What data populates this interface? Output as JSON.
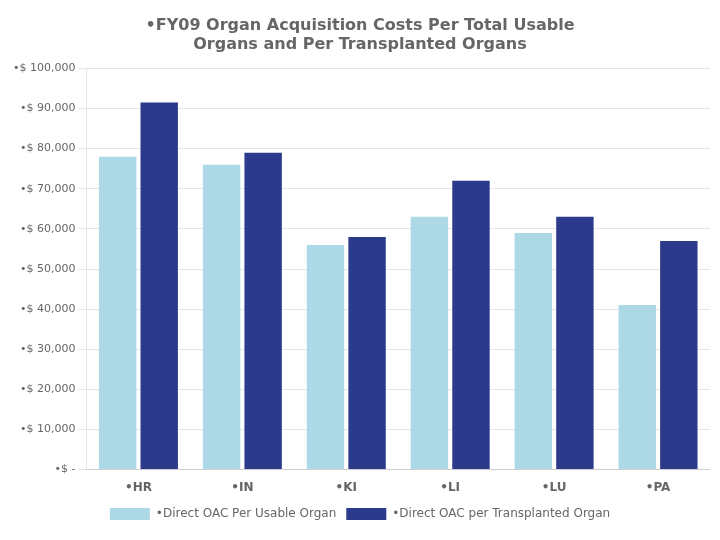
{
  "chart_data": {
    "type": "bar",
    "title": "•FY09 Organ Acquisition Costs Per Total Usable\nOrgans and Per Transplanted Organs",
    "categories": [
      "•HR",
      "•IN",
      "•KI",
      "•LI",
      "•LU",
      "•PA"
    ],
    "series": [
      {
        "name": "•Direct OAC Per Usable Organ",
        "color": "#add8e6",
        "values": [
          78000,
          76000,
          56000,
          63000,
          59000,
          41000
        ]
      },
      {
        "name": "•Direct OAC per Transplanted Organ",
        "color": "#2b3a8a",
        "values": [
          91500,
          79000,
          58000,
          72000,
          63000,
          57000
        ]
      }
    ],
    "ylim": [
      0,
      100000
    ],
    "yticks": [
      {
        "value": 0,
        "label": "•$ -"
      },
      {
        "value": 10000,
        "label": "•$ 10,000"
      },
      {
        "value": 20000,
        "label": "•$ 20,000"
      },
      {
        "value": 30000,
        "label": "•$ 30,000"
      },
      {
        "value": 40000,
        "label": "•$ 40,000"
      },
      {
        "value": 50000,
        "label": "•$ 50,000"
      },
      {
        "value": 60000,
        "label": "•$ 60,000"
      },
      {
        "value": 70000,
        "label": "•$ 70,000"
      },
      {
        "value": 80000,
        "label": "•$ 80,000"
      },
      {
        "value": 90000,
        "label": "•$ 90,000"
      },
      {
        "value": 100000,
        "label": "•$ 100,000"
      }
    ],
    "grid": true,
    "legend": "bottom"
  }
}
